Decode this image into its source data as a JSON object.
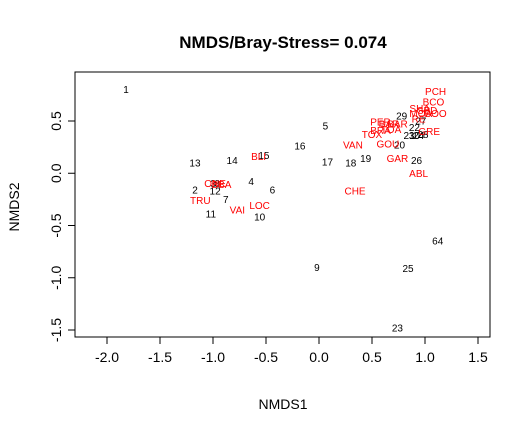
{
  "chart_data": {
    "type": "scatter",
    "title": "NMDS/Bray-Stress= 0.074",
    "xlabel": "NMDS1",
    "ylabel": "NMDS2",
    "xlim": [
      -2.3,
      1.6
    ],
    "ylim": [
      -1.55,
      1.0
    ],
    "xticks": [
      -2.0,
      -1.5,
      -1.0,
      -0.5,
      0.0,
      0.5,
      1.0,
      1.5
    ],
    "xtick_labels": [
      "-2.0",
      "-1.5",
      "-1.0",
      "-0.5",
      "0.0",
      "0.5",
      "1.0",
      "1.5"
    ],
    "yticks": [
      -1.5,
      -1.0,
      -0.5,
      0.0,
      0.5
    ],
    "ytick_labels": [
      "-1.5",
      "-1.0",
      "-0.5",
      "0.0",
      "0.5"
    ],
    "grid": false,
    "colors": {
      "sites": "#000000",
      "species": "#ff0000"
    },
    "series": [
      {
        "color": "sites",
        "points": [
          {
            "label": "1",
            "x": -1.82,
            "y": 0.8
          },
          {
            "label": "2",
            "x": -1.17,
            "y": -0.16
          },
          {
            "label": "3",
            "x": -1.0,
            "y": -0.1
          },
          {
            "label": "4",
            "x": -0.64,
            "y": -0.08
          },
          {
            "label": "5",
            "x": 0.06,
            "y": 0.45
          },
          {
            "label": "6",
            "x": -0.44,
            "y": -0.16
          },
          {
            "label": "7",
            "x": -0.88,
            "y": -0.25
          },
          {
            "label": "8",
            "x": -0.96,
            "y": -0.1
          },
          {
            "label": "9",
            "x": -0.02,
            "y": -0.9
          },
          {
            "label": "10",
            "x": -0.56,
            "y": -0.42
          },
          {
            "label": "11",
            "x": -1.02,
            "y": -0.39
          },
          {
            "label": "12",
            "x": -0.98,
            "y": -0.17
          },
          {
            "label": "13",
            "x": -1.17,
            "y": 0.1
          },
          {
            "label": "14",
            "x": -0.82,
            "y": 0.12
          },
          {
            "label": "15",
            "x": -0.52,
            "y": 0.17
          },
          {
            "label": "16",
            "x": -0.18,
            "y": 0.26
          },
          {
            "label": "17",
            "x": 0.08,
            "y": 0.11
          },
          {
            "label": "18",
            "x": 0.3,
            "y": 0.1
          },
          {
            "label": "19",
            "x": 0.44,
            "y": 0.14
          },
          {
            "label": "20",
            "x": 0.76,
            "y": 0.27
          },
          {
            "label": "21",
            "x": 0.85,
            "y": 0.36
          },
          {
            "label": "22",
            "x": 0.9,
            "y": 0.44
          },
          {
            "label": "23",
            "x": 0.74,
            "y": -1.48
          },
          {
            "label": "24",
            "x": 0.94,
            "y": 0.36
          },
          {
            "label": "25",
            "x": 0.84,
            "y": -0.91
          },
          {
            "label": "26",
            "x": 0.92,
            "y": 0.12
          },
          {
            "label": "27",
            "x": 0.96,
            "y": 0.5
          },
          {
            "label": "28",
            "x": 0.98,
            "y": 0.37
          },
          {
            "label": "29",
            "x": 0.78,
            "y": 0.55
          },
          {
            "label": "30",
            "x": 0.9,
            "y": 0.36
          },
          {
            "label": "64",
            "x": 1.12,
            "y": -0.65
          }
        ]
      },
      {
        "color": "species",
        "points": [
          {
            "label": "PCH",
            "x": 1.1,
            "y": 0.78
          },
          {
            "label": "BCO",
            "x": 1.08,
            "y": 0.68
          },
          {
            "label": "SHA",
            "x": 0.95,
            "y": 0.62
          },
          {
            "label": "SPD",
            "x": 1.02,
            "y": 0.6
          },
          {
            "label": "MOA",
            "x": 0.96,
            "y": 0.57
          },
          {
            "label": "BOO",
            "x": 1.1,
            "y": 0.57
          },
          {
            "label": "RE",
            "x": 0.94,
            "y": 0.52
          },
          {
            "label": "PER",
            "x": 0.58,
            "y": 0.49
          },
          {
            "label": "BAR",
            "x": 0.66,
            "y": 0.47
          },
          {
            "label": "BAR",
            "x": 0.74,
            "y": 0.47
          },
          {
            "label": "TOA",
            "x": 0.68,
            "y": 0.42
          },
          {
            "label": "BRA",
            "x": 0.58,
            "y": 0.41
          },
          {
            "label": "TOX",
            "x": 0.5,
            "y": 0.37
          },
          {
            "label": "GRE",
            "x": 1.04,
            "y": 0.4
          },
          {
            "label": "GOU",
            "x": 0.65,
            "y": 0.28
          },
          {
            "label": "VAN",
            "x": 0.32,
            "y": 0.27
          },
          {
            "label": "GAR",
            "x": 0.74,
            "y": 0.14
          },
          {
            "label": "ABL",
            "x": 0.94,
            "y": 0.0
          },
          {
            "label": "BLI",
            "x": -0.57,
            "y": 0.16
          },
          {
            "label": "CHE",
            "x": 0.34,
            "y": -0.17
          },
          {
            "label": "ONE",
            "x": -0.98,
            "y": -0.1
          },
          {
            "label": "BBA",
            "x": -0.92,
            "y": -0.11
          },
          {
            "label": "TRU",
            "x": -1.12,
            "y": -0.26
          },
          {
            "label": "VAI",
            "x": -0.77,
            "y": -0.35
          },
          {
            "label": "LOC",
            "x": -0.56,
            "y": -0.31
          }
        ]
      }
    ]
  }
}
